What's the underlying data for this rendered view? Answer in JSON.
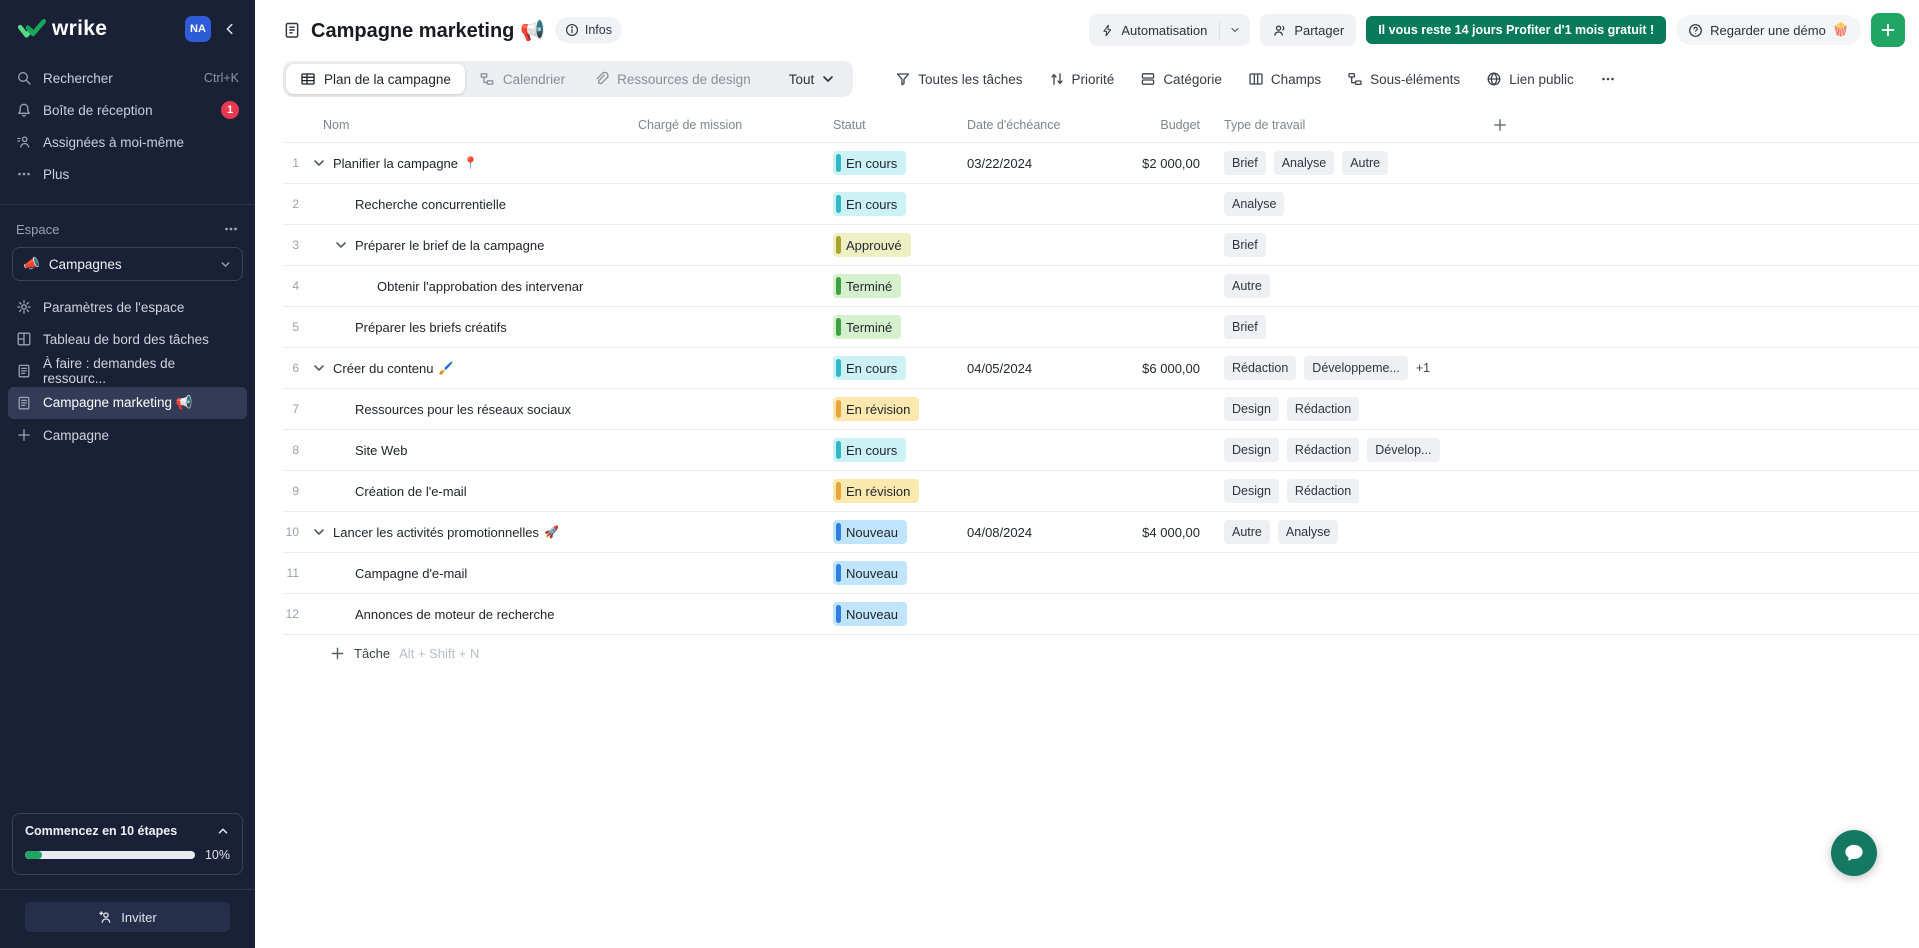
{
  "colors": {
    "accent_green": "#21a564",
    "trial_green": "#0a7b5a",
    "chat_teal": "#157863",
    "badge_red": "#e8384f",
    "sidebar_bg": "#1a2136"
  },
  "sidebar": {
    "logo_text": "wrike",
    "avatar_initials": "NA",
    "nav": [
      {
        "key": "search",
        "icon": "search",
        "label": "Rechercher",
        "shortcut": "Ctrl+K"
      },
      {
        "key": "inbox",
        "icon": "bell",
        "label": "Boîte de réception",
        "badge": "1"
      },
      {
        "key": "assigned-to-me",
        "icon": "person",
        "label": "Assignées à moi-même"
      },
      {
        "key": "more",
        "icon": "dots",
        "label": "Plus"
      }
    ],
    "space": {
      "section_label": "Espace",
      "selector_label": "Campagnes",
      "selector_emoji": "📣",
      "items": [
        {
          "key": "space-settings",
          "icon": "gear",
          "label": "Paramètres de l'espace"
        },
        {
          "key": "task-dashboard",
          "icon": "dashboard",
          "label": "Tableau de bord des tâches"
        },
        {
          "key": "todo-resource-requests",
          "icon": "doc",
          "label": "À faire : demandes de ressourc..."
        },
        {
          "key": "campagne-marketing",
          "icon": "doc",
          "label": "Campagne marketing 📢",
          "selected": true
        },
        {
          "key": "new-campagne",
          "icon": "plus",
          "label": "Campagne"
        }
      ]
    },
    "onboarding": {
      "title": "Commencez en 10 étapes",
      "progress_label": "10%",
      "progress_percent": 10
    },
    "invite_label": "Inviter"
  },
  "header": {
    "title": "Campagne marketing 📢",
    "infos_label": "Infos",
    "automation_label": "Automatisation",
    "share_label": "Partager",
    "trial_banner": "Il vous reste 14 jours Profiter d'1 mois gratuit !",
    "demo_label": "Regarder une démo",
    "demo_emoji": "🍿"
  },
  "tabs": [
    {
      "key": "plan",
      "icon": "table",
      "label": "Plan de la campagne",
      "active": true
    },
    {
      "key": "calendrier",
      "icon": "gantt",
      "label": "Calendrier"
    },
    {
      "key": "ressources-design",
      "icon": "paperclip",
      "label": "Ressources de design"
    },
    {
      "key": "tout",
      "label": "Tout",
      "dropdown": true
    }
  ],
  "toolbar": [
    {
      "key": "all-tasks-filter",
      "icon": "funnel",
      "label": "Toutes les tâches"
    },
    {
      "key": "priority",
      "icon": "sort",
      "label": "Priorité"
    },
    {
      "key": "category",
      "icon": "category",
      "label": "Catégorie"
    },
    {
      "key": "fields",
      "icon": "fields",
      "label": "Champs"
    },
    {
      "key": "subitems",
      "icon": "subitems",
      "label": "Sous-éléments"
    },
    {
      "key": "public-link",
      "icon": "globe",
      "label": "Lien public"
    },
    {
      "key": "more-options",
      "icon": "dots",
      "label": ""
    }
  ],
  "table": {
    "columns": [
      "Nom",
      "Chargé de mission",
      "Statut",
      "Date d'échéance",
      "Budget",
      "Type de travail"
    ],
    "status_styles": {
      "En cours": {
        "bg": "#cdf2f6",
        "bar": "#2fb9c6"
      },
      "Approuvé": {
        "bg": "#eef0c4",
        "bar": "#a8a42b"
      },
      "Terminé": {
        "bg": "#d5f0cd",
        "bar": "#3f9f43"
      },
      "En révision": {
        "bg": "#fbe8ae",
        "bar": "#eaa53c"
      },
      "Nouveau": {
        "bg": "#c0e4fb",
        "bar": "#2e7fdf"
      }
    },
    "rows": [
      {
        "num": 1,
        "level": 0,
        "chevron": true,
        "name": "Planifier la campagne",
        "emoji": "📍",
        "status": "En cours",
        "date": "03/22/2024",
        "budget": "$2 000,00",
        "tags": [
          "Brief",
          "Analyse",
          "Autre"
        ]
      },
      {
        "num": 2,
        "level": 1,
        "chevron": false,
        "name": "Recherche concurrentielle",
        "status": "En cours",
        "tags": [
          "Analyse"
        ]
      },
      {
        "num": 3,
        "level": 1,
        "chevron": true,
        "name": "Préparer le brief de la campagne",
        "status": "Approuvé",
        "tags": [
          "Brief"
        ]
      },
      {
        "num": 4,
        "level": 2,
        "chevron": false,
        "name": "Obtenir l'approbation des intervenar",
        "status": "Terminé",
        "tags": [
          "Autre"
        ]
      },
      {
        "num": 5,
        "level": 1,
        "chevron": false,
        "name": "Préparer les briefs créatifs",
        "status": "Terminé",
        "tags": [
          "Brief"
        ]
      },
      {
        "num": 6,
        "level": 0,
        "chevron": true,
        "name": "Créer du contenu",
        "emoji": "🖌️",
        "status": "En cours",
        "date": "04/05/2024",
        "budget": "$6 000,00",
        "tags": [
          "Rédaction",
          "Développeme..."
        ],
        "tags_extra": "+1"
      },
      {
        "num": 7,
        "level": 1,
        "chevron": false,
        "name": "Ressources pour les réseaux sociaux",
        "status": "En révision",
        "tags": [
          "Design",
          "Rédaction"
        ]
      },
      {
        "num": 8,
        "level": 1,
        "chevron": false,
        "name": "Site Web",
        "status": "En cours",
        "tags": [
          "Design",
          "Rédaction",
          "Dévelop..."
        ]
      },
      {
        "num": 9,
        "level": 1,
        "chevron": false,
        "name": "Création de l'e-mail",
        "status": "En révision",
        "tags": [
          "Design",
          "Rédaction"
        ]
      },
      {
        "num": 10,
        "level": 0,
        "chevron": true,
        "name": "Lancer les activités promotionnelles",
        "emoji": "🚀",
        "status": "Nouveau",
        "date": "04/08/2024",
        "budget": "$4 000,00",
        "tags": [
          "Autre",
          "Analyse"
        ]
      },
      {
        "num": 11,
        "level": 1,
        "chevron": false,
        "name": "Campagne d'e-mail",
        "status": "Nouveau",
        "tags": []
      },
      {
        "num": 12,
        "level": 1,
        "chevron": false,
        "name": "Annonces de moteur de recherche",
        "status": "Nouveau",
        "tags": []
      }
    ],
    "add_task": {
      "label": "Tâche",
      "shortcut": "Alt + Shift + N"
    }
  }
}
